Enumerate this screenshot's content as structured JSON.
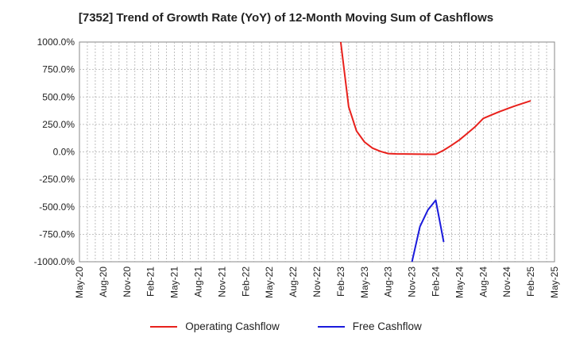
{
  "chart_data": {
    "type": "line",
    "title": "[7352]  Trend of Growth Rate (YoY) of 12-Month Moving Sum of Cashflows",
    "xlabel": "",
    "ylabel": "",
    "ylim": [
      -1000,
      1000
    ],
    "yticks": [
      1000,
      750,
      500,
      250,
      0,
      -250,
      -500,
      -750,
      -1000
    ],
    "ytick_labels": [
      "1000.0%",
      "750.0%",
      "500.0%",
      "250.0%",
      "0.0%",
      "-250.0%",
      "-500.0%",
      "-750.0%",
      "-1000.0%"
    ],
    "x_start": "May-20",
    "x_end": "May-25",
    "xtick_labels": [
      "May-20",
      "Aug-20",
      "Nov-20",
      "Feb-21",
      "May-21",
      "Aug-21",
      "Nov-21",
      "Feb-22",
      "May-22",
      "Aug-22",
      "Nov-22",
      "Feb-23",
      "May-23",
      "Aug-23",
      "Nov-23",
      "Feb-24",
      "May-24",
      "Aug-24",
      "Nov-24",
      "Feb-25",
      "May-25"
    ],
    "grid": true,
    "legend_position": "bottom",
    "series": [
      {
        "name": "Operating Cashflow",
        "color": "#e8211c",
        "x": [
          "Feb-23",
          "Mar-23",
          "Apr-23",
          "May-23",
          "Jun-23",
          "Jul-23",
          "Aug-23",
          "Sep-23",
          "Oct-23",
          "Nov-23",
          "Dec-23",
          "Jan-24",
          "Feb-24",
          "Mar-24",
          "Apr-24",
          "May-24",
          "Jun-24",
          "Jul-24",
          "Aug-24",
          "Sep-24",
          "Oct-24",
          "Nov-24",
          "Dec-24",
          "Jan-25",
          "Feb-25"
        ],
        "values": [
          1000,
          410,
          190,
          90,
          35,
          5,
          -15,
          -18,
          -19,
          -20,
          -21,
          -22,
          -22,
          15,
          60,
          110,
          170,
          230,
          305,
          335,
          365,
          392,
          418,
          442,
          465
        ]
      },
      {
        "name": "Free Cashflow",
        "color": "#1a1adc",
        "x": [
          "Nov-23",
          "Dec-23",
          "Jan-24",
          "Feb-24",
          "Mar-24"
        ],
        "values": [
          -1000,
          -680,
          -530,
          -440,
          -820
        ]
      }
    ]
  }
}
